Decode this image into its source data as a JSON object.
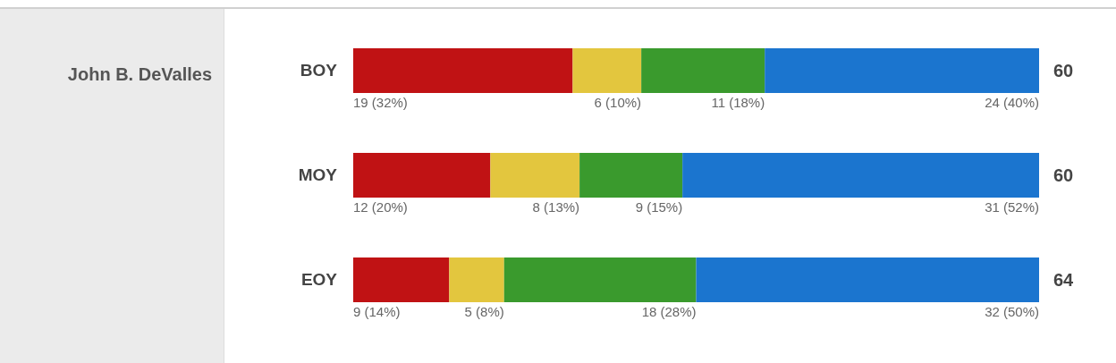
{
  "chart_data": {
    "type": "bar",
    "orientation": "horizontal",
    "stacked": true,
    "title": "John B. DeValles",
    "categories": [
      "BOY",
      "MOY",
      "EOY"
    ],
    "series": [
      {
        "color": "#c01214",
        "values": [
          32,
          20,
          14
        ],
        "value_labels": [
          "19 (32%)",
          "12 (20%)",
          "9 (14%)"
        ]
      },
      {
        "color": "#e3c63e",
        "values": [
          10,
          13,
          8
        ],
        "value_labels": [
          "6 (10%)",
          "8 (13%)",
          "5 (8%)"
        ]
      },
      {
        "color": "#3a9a2d",
        "values": [
          18,
          15,
          28
        ],
        "value_labels": [
          "11 (18%)",
          "9 (15%)",
          "18 (28%)"
        ]
      },
      {
        "color": "#1b75cf",
        "values": [
          40,
          52,
          50
        ],
        "value_labels": [
          "24 (40%)",
          "31 (52%)",
          "32 (50%)"
        ]
      }
    ],
    "annotations": [
      "60",
      "60",
      "64"
    ],
    "legend": false,
    "grid": false
  }
}
